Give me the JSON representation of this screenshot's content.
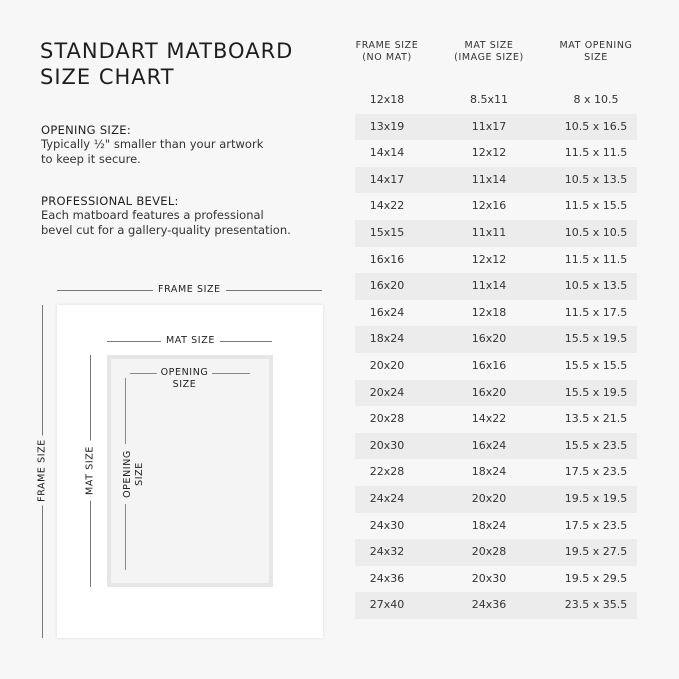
{
  "title_line1": "STANDART MATBOARD",
  "title_line2": "SIZE CHART",
  "info": [
    {
      "heading": "OPENING SIZE:",
      "text_line1": "Typically ½\" smaller than your artwork",
      "text_line2": "to keep it secure."
    },
    {
      "heading": "PROFESSIONAL BEVEL:",
      "text_line1": "Each matboard features a professional",
      "text_line2": "bevel cut for a gallery-quality presentation."
    }
  ],
  "diagram": {
    "frame_size": "FRAME SIZE",
    "mat_size": "MAT SIZE",
    "opening_line1": "OPENING",
    "opening_line2": "SIZE"
  },
  "table": {
    "headers": [
      [
        "FRAME SIZE",
        "(NO MAT)"
      ],
      [
        "MAT SIZE",
        "(IMAGE SIZE)"
      ],
      [
        "MAT OPENING",
        "SIZE"
      ]
    ],
    "rows": [
      [
        "12x18",
        "8.5x11",
        "8 x 10.5"
      ],
      [
        "13x19",
        "11x17",
        "10.5 x 16.5"
      ],
      [
        "14x14",
        "12x12",
        "11.5 x 11.5"
      ],
      [
        "14x17",
        "11x14",
        "10.5 x 13.5"
      ],
      [
        "14x22",
        "12x16",
        "11.5 x 15.5"
      ],
      [
        "15x15",
        "11x11",
        "10.5 x 10.5"
      ],
      [
        "16x16",
        "12x12",
        "11.5 x 11.5"
      ],
      [
        "16x20",
        "11x14",
        "10.5 x 13.5"
      ],
      [
        "16x24",
        "12x18",
        "11.5 x 17.5"
      ],
      [
        "18x24",
        "16x20",
        "15.5 x 19.5"
      ],
      [
        "20x20",
        "16x16",
        "15.5 x 15.5"
      ],
      [
        "20x24",
        "16x20",
        "15.5 x 19.5"
      ],
      [
        "20x28",
        "14x22",
        "13.5 x 21.5"
      ],
      [
        "20x30",
        "16x24",
        "15.5 x 23.5"
      ],
      [
        "22x28",
        "18x24",
        "17.5 x 23.5"
      ],
      [
        "24x24",
        "20x20",
        "19.5 x 19.5"
      ],
      [
        "24x30",
        "18x24",
        "17.5 x 23.5"
      ],
      [
        "24x32",
        "20x28",
        "19.5 x 27.5"
      ],
      [
        "24x36",
        "20x30",
        "19.5 x 29.5"
      ],
      [
        "27x40",
        "24x36",
        "23.5 x 35.5"
      ]
    ]
  }
}
